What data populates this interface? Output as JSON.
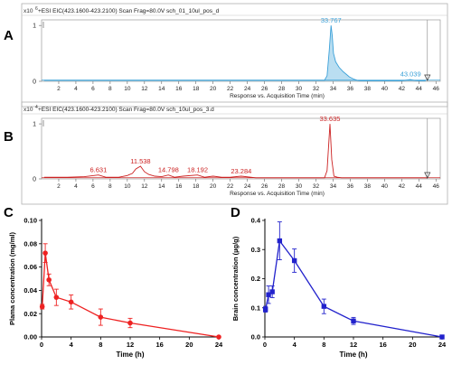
{
  "chart_data": [
    {
      "panel": "A",
      "type": "line",
      "scale_label": "x10",
      "scale_exp": "6",
      "header": "+ESI EIC(423.1600-423.2100) Scan Frag=80.0V sch_01_10ul_pos_d",
      "xlabel": "Response vs. Acquisition Time (min)",
      "x_ticks": [
        2,
        4,
        6,
        8,
        10,
        12,
        14,
        16,
        18,
        20,
        22,
        24,
        26,
        28,
        30,
        32,
        34,
        36,
        38,
        40,
        42,
        44,
        46
      ],
      "y_ticks": [
        0,
        1
      ],
      "xlim": [
        0,
        46.5
      ],
      "ylim": [
        0,
        1.1
      ],
      "color": "#3aa0d8",
      "peak_labels": [
        {
          "text": "33.767",
          "x": 33.767,
          "y": 1.0
        },
        {
          "text": "43.039",
          "x": 43.039,
          "y": 0.04
        }
      ],
      "series": [
        {
          "x": [
            0.3,
            33.0,
            33.3,
            33.55,
            33.767,
            33.9,
            34.05,
            34.3,
            34.7,
            35.2,
            35.9,
            36.4,
            36.8,
            37.2,
            38,
            40,
            42,
            43.0,
            43.4,
            44,
            44.8
          ],
          "y": [
            0.02,
            0.02,
            0.1,
            0.55,
            1.0,
            0.82,
            0.5,
            0.35,
            0.25,
            0.17,
            0.08,
            0.04,
            0.02,
            0.01,
            0.01,
            0.01,
            0.01,
            0.03,
            0.02,
            0.01,
            0.01
          ]
        }
      ]
    },
    {
      "panel": "B",
      "type": "line",
      "scale_label": "x10",
      "scale_exp": "4",
      "header": "+ESI EIC(423.1600-423.2100) Scan Frag=80.0V sch_10ul_pos_3.d",
      "xlabel": "Response vs. Acquisition Time (min)",
      "x_ticks": [
        2,
        4,
        6,
        8,
        10,
        12,
        14,
        16,
        18,
        20,
        22,
        24,
        26,
        28,
        30,
        32,
        34,
        36,
        38,
        40,
        42,
        44,
        46
      ],
      "y_ticks": [
        0,
        1
      ],
      "xlim": [
        0,
        46.5
      ],
      "ylim": [
        0,
        1.1
      ],
      "color": "#cc2222",
      "peak_labels": [
        {
          "text": "6.631",
          "x": 6.631,
          "y": 0.07
        },
        {
          "text": "11.538",
          "x": 11.538,
          "y": 0.23
        },
        {
          "text": "14.798",
          "x": 14.798,
          "y": 0.07
        },
        {
          "text": "18.192",
          "x": 18.192,
          "y": 0.07
        },
        {
          "text": "23.284",
          "x": 23.284,
          "y": 0.05
        },
        {
          "text": "33.635",
          "x": 33.635,
          "y": 1.0
        }
      ],
      "series": [
        {
          "x": [
            0.3,
            3,
            5,
            6.631,
            7.5,
            9,
            10,
            10.6,
            11.0,
            11.538,
            12,
            12.5,
            13.2,
            14,
            14.798,
            15.5,
            16.5,
            18.192,
            19,
            20,
            21,
            22,
            23.284,
            25,
            28,
            31,
            33.0,
            33.3,
            33.635,
            33.85,
            34.1,
            34.5,
            35,
            37,
            40,
            43,
            45
          ],
          "y": [
            0.03,
            0.03,
            0.04,
            0.07,
            0.03,
            0.03,
            0.06,
            0.1,
            0.18,
            0.23,
            0.13,
            0.08,
            0.05,
            0.04,
            0.07,
            0.03,
            0.05,
            0.07,
            0.03,
            0.05,
            0.03,
            0.03,
            0.05,
            0.02,
            0.02,
            0.02,
            0.02,
            0.15,
            1.0,
            0.35,
            0.05,
            0.03,
            0.02,
            0.02,
            0.02,
            0.02,
            0.02
          ]
        }
      ]
    },
    {
      "panel": "C",
      "type": "line",
      "xlabel": "Time (h)",
      "ylabel": "Plama concentration (mg/ml)",
      "x_ticks": [
        0,
        4,
        8,
        12,
        16,
        20,
        24
      ],
      "y_ticks": [
        "0.00",
        "0.02",
        "0.04",
        "0.06",
        "0.08",
        "0.10"
      ],
      "xlim": [
        0,
        24
      ],
      "ylim": [
        0,
        0.1
      ],
      "color": "#ee2222",
      "series": [
        {
          "x": [
            0.083,
            0.5,
            1,
            2,
            4,
            8,
            12,
            24
          ],
          "y": [
            0.026,
            0.072,
            0.049,
            0.034,
            0.03,
            0.017,
            0.012,
            0.0
          ],
          "err": [
            0.002,
            0.008,
            0.005,
            0.007,
            0.006,
            0.007,
            0.004,
            0.0
          ]
        }
      ]
    },
    {
      "panel": "D",
      "type": "line",
      "xlabel": "Time (h)",
      "ylabel": "Brain concentration (µg/g)",
      "x_ticks": [
        0,
        4,
        8,
        12,
        16,
        20,
        24
      ],
      "y_ticks": [
        "0.0",
        "0.1",
        "0.2",
        "0.3",
        "0.4"
      ],
      "xlim": [
        0,
        24
      ],
      "ylim": [
        0,
        0.4
      ],
      "color": "#2222cc",
      "series": [
        {
          "x": [
            0.083,
            0.5,
            1,
            2,
            4,
            8,
            12,
            24
          ],
          "y": [
            0.095,
            0.145,
            0.155,
            0.33,
            0.262,
            0.105,
            0.055,
            0.0
          ],
          "err": [
            0.01,
            0.03,
            0.02,
            0.065,
            0.04,
            0.025,
            0.012,
            0.0
          ]
        }
      ]
    }
  ]
}
